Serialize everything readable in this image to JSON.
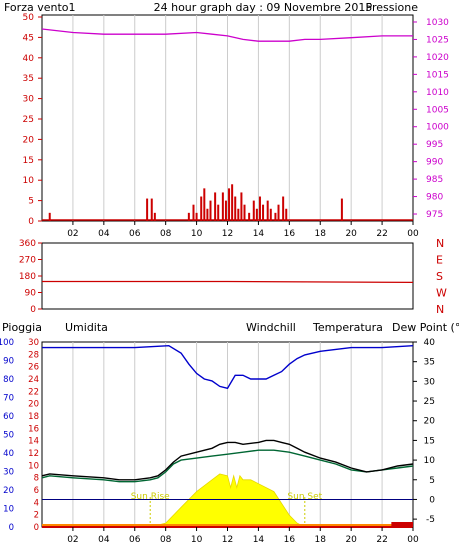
{
  "header": {
    "left": "Forza vento1",
    "title": "24 hour graph day : 09 Novembre 2015",
    "right": "Pressione"
  },
  "mid_header_labels": {
    "pioggia": "Pioggia",
    "umidita": "Umidita",
    "windchill": "Windchill",
    "temperatura": "Temperatura",
    "dewpoint": "Dew Point (°C"
  },
  "colors": {
    "wind": "#cc0000",
    "pressure": "#cc00cc",
    "humidity": "#0000cc",
    "temperature": "#000000",
    "dewpoint": "#006633",
    "windchill": "#ff8800",
    "solar": "#ffff00",
    "rain_axis": "#cc0000",
    "grid": "#cccccc",
    "navy": "#000080",
    "sun_label": "#cccc00"
  },
  "chart_data": [
    {
      "type": "bar",
      "panel": "wind-pressure",
      "x_ticks": [
        "02",
        "04",
        "06",
        "08",
        "10",
        "12",
        "14",
        "16",
        "18",
        "20",
        "22",
        "00"
      ],
      "y_left_ticks": [
        0,
        5,
        10,
        15,
        20,
        25,
        30,
        35,
        40,
        45,
        50
      ],
      "y_right_ticks": [
        975,
        980,
        985,
        990,
        995,
        1000,
        1005,
        1010,
        1015,
        1020,
        1025,
        1030
      ],
      "ylim_left": [
        0,
        50
      ],
      "ylim_right": [
        973,
        1032
      ],
      "wind_bars": [
        {
          "t": 0.5,
          "v": 2
        },
        {
          "t": 6.8,
          "v": 5.5
        },
        {
          "t": 7.1,
          "v": 5.5
        },
        {
          "t": 7.3,
          "v": 2
        },
        {
          "t": 9.5,
          "v": 2
        },
        {
          "t": 9.8,
          "v": 4
        },
        {
          "t": 10.0,
          "v": 2
        },
        {
          "t": 10.3,
          "v": 6
        },
        {
          "t": 10.5,
          "v": 8
        },
        {
          "t": 10.7,
          "v": 3
        },
        {
          "t": 10.9,
          "v": 5
        },
        {
          "t": 11.2,
          "v": 7
        },
        {
          "t": 11.4,
          "v": 4
        },
        {
          "t": 11.7,
          "v": 7
        },
        {
          "t": 11.9,
          "v": 5
        },
        {
          "t": 12.1,
          "v": 8
        },
        {
          "t": 12.3,
          "v": 9
        },
        {
          "t": 12.5,
          "v": 6
        },
        {
          "t": 12.7,
          "v": 3
        },
        {
          "t": 12.9,
          "v": 7
        },
        {
          "t": 13.1,
          "v": 4
        },
        {
          "t": 13.4,
          "v": 2
        },
        {
          "t": 13.7,
          "v": 5
        },
        {
          "t": 13.9,
          "v": 3
        },
        {
          "t": 14.1,
          "v": 6
        },
        {
          "t": 14.3,
          "v": 4
        },
        {
          "t": 14.6,
          "v": 5
        },
        {
          "t": 14.8,
          "v": 3
        },
        {
          "t": 15.1,
          "v": 2
        },
        {
          "t": 15.3,
          "v": 4
        },
        {
          "t": 15.6,
          "v": 6
        },
        {
          "t": 15.8,
          "v": 3
        },
        {
          "t": 19.4,
          "v": 5.5
        }
      ],
      "pressure": [
        {
          "t": 0,
          "v": 1028
        },
        {
          "t": 2,
          "v": 1027
        },
        {
          "t": 4,
          "v": 1026.5
        },
        {
          "t": 6,
          "v": 1026.5
        },
        {
          "t": 8,
          "v": 1026.5
        },
        {
          "t": 10,
          "v": 1027
        },
        {
          "t": 11,
          "v": 1026.5
        },
        {
          "t": 12,
          "v": 1026
        },
        {
          "t": 13,
          "v": 1025
        },
        {
          "t": 14,
          "v": 1024.5
        },
        {
          "t": 15,
          "v": 1024.5
        },
        {
          "t": 16,
          "v": 1024.5
        },
        {
          "t": 17,
          "v": 1025
        },
        {
          "t": 18,
          "v": 1025
        },
        {
          "t": 20,
          "v": 1025.5
        },
        {
          "t": 22,
          "v": 1026
        },
        {
          "t": 24,
          "v": 1026
        }
      ]
    },
    {
      "type": "line",
      "panel": "wind-direction",
      "y_ticks": [
        0,
        90,
        180,
        270,
        360
      ],
      "y_right_labels": [
        "N",
        "W",
        "S",
        "E",
        "N"
      ],
      "ylim": [
        0,
        360
      ],
      "direction": [
        {
          "t": 0,
          "v": 150
        },
        {
          "t": 12,
          "v": 150
        },
        {
          "t": 24,
          "v": 145
        }
      ]
    },
    {
      "type": "line",
      "panel": "rain-humidity-temperature",
      "x_ticks": [
        "02",
        "04",
        "06",
        "08",
        "10",
        "12",
        "14",
        "16",
        "18",
        "20",
        "22",
        "00"
      ],
      "humidity_ticks": [
        0,
        10,
        20,
        30,
        40,
        50,
        60,
        70,
        80,
        90,
        100
      ],
      "rain_ticks": [
        0,
        2,
        4,
        6,
        8,
        10,
        12,
        14,
        16,
        18,
        20,
        22,
        24,
        26,
        28,
        30
      ],
      "temp_ticks": [
        -5,
        0,
        5,
        10,
        15,
        20,
        25,
        30,
        35,
        40
      ],
      "ylim_temp": [
        -7,
        40
      ],
      "annotations": [
        "Sun Rise",
        "Sun Set"
      ],
      "humidity": [
        {
          "t": 0,
          "v": 97
        },
        {
          "t": 3,
          "v": 97
        },
        {
          "t": 6,
          "v": 97
        },
        {
          "t": 8.2,
          "v": 98
        },
        {
          "t": 9,
          "v": 94
        },
        {
          "t": 9.5,
          "v": 88
        },
        {
          "t": 10,
          "v": 83
        },
        {
          "t": 10.5,
          "v": 80
        },
        {
          "t": 11,
          "v": 79
        },
        {
          "t": 11.5,
          "v": 76
        },
        {
          "t": 12,
          "v": 75
        },
        {
          "t": 12.5,
          "v": 82
        },
        {
          "t": 13,
          "v": 82
        },
        {
          "t": 13.5,
          "v": 80
        },
        {
          "t": 14,
          "v": 80
        },
        {
          "t": 14.5,
          "v": 80
        },
        {
          "t": 15,
          "v": 82
        },
        {
          "t": 15.5,
          "v": 84
        },
        {
          "t": 16,
          "v": 88
        },
        {
          "t": 16.5,
          "v": 91
        },
        {
          "t": 17,
          "v": 93
        },
        {
          "t": 18,
          "v": 95
        },
        {
          "t": 19,
          "v": 96
        },
        {
          "t": 20,
          "v": 97
        },
        {
          "t": 22,
          "v": 97
        },
        {
          "t": 24,
          "v": 98
        }
      ],
      "temperature": [
        {
          "t": 0,
          "v": 6.0
        },
        {
          "t": 0.5,
          "v": 6.5
        },
        {
          "t": 2,
          "v": 6.0
        },
        {
          "t": 4,
          "v": 5.5
        },
        {
          "t": 5,
          "v": 5.0
        },
        {
          "t": 6,
          "v": 5.0
        },
        {
          "t": 7,
          "v": 5.5
        },
        {
          "t": 7.5,
          "v": 6.0
        },
        {
          "t": 8,
          "v": 7.5
        },
        {
          "t": 8.5,
          "v": 9.5
        },
        {
          "t": 9,
          "v": 11.0
        },
        {
          "t": 10,
          "v": 12.0
        },
        {
          "t": 11,
          "v": 13.0
        },
        {
          "t": 11.5,
          "v": 14.0
        },
        {
          "t": 12,
          "v": 14.5
        },
        {
          "t": 12.5,
          "v": 14.5
        },
        {
          "t": 13,
          "v": 14.0
        },
        {
          "t": 14,
          "v": 14.5
        },
        {
          "t": 14.5,
          "v": 15.0
        },
        {
          "t": 15,
          "v": 15.0
        },
        {
          "t": 15.5,
          "v": 14.5
        },
        {
          "t": 16,
          "v": 14.0
        },
        {
          "t": 16.5,
          "v": 13.0
        },
        {
          "t": 17,
          "v": 12.0
        },
        {
          "t": 18,
          "v": 10.5
        },
        {
          "t": 19,
          "v": 9.5
        },
        {
          "t": 20,
          "v": 8.0
        },
        {
          "t": 21,
          "v": 7.0
        },
        {
          "t": 22,
          "v": 7.5
        },
        {
          "t": 23,
          "v": 8.5
        },
        {
          "t": 24,
          "v": 9.0
        }
      ],
      "dewpoint": [
        {
          "t": 0,
          "v": 5.5
        },
        {
          "t": 0.5,
          "v": 6.0
        },
        {
          "t": 2,
          "v": 5.5
        },
        {
          "t": 4,
          "v": 5.0
        },
        {
          "t": 5,
          "v": 4.5
        },
        {
          "t": 6,
          "v": 4.5
        },
        {
          "t": 7,
          "v": 5.0
        },
        {
          "t": 7.5,
          "v": 5.5
        },
        {
          "t": 8,
          "v": 7.0
        },
        {
          "t": 8.5,
          "v": 9.0
        },
        {
          "t": 9,
          "v": 10.0
        },
        {
          "t": 10,
          "v": 10.5
        },
        {
          "t": 11,
          "v": 11.0
        },
        {
          "t": 12,
          "v": 11.5
        },
        {
          "t": 13,
          "v": 12.0
        },
        {
          "t": 14,
          "v": 12.5
        },
        {
          "t": 15,
          "v": 12.5
        },
        {
          "t": 16,
          "v": 12.0
        },
        {
          "t": 17,
          "v": 11.0
        },
        {
          "t": 18,
          "v": 10.0
        },
        {
          "t": 19,
          "v": 9.0
        },
        {
          "t": 20,
          "v": 7.5
        },
        {
          "t": 21,
          "v": 7.0
        },
        {
          "t": 22,
          "v": 7.5
        },
        {
          "t": 23,
          "v": 8.0
        },
        {
          "t": 24,
          "v": 8.5
        }
      ],
      "solar": [
        {
          "t": 7.0,
          "v": -7
        },
        {
          "t": 8,
          "v": -6
        },
        {
          "t": 9,
          "v": -2
        },
        {
          "t": 10,
          "v": 2
        },
        {
          "t": 11,
          "v": 5
        },
        {
          "t": 11.5,
          "v": 6.5
        },
        {
          "t": 12,
          "v": 6
        },
        {
          "t": 12.2,
          "v": 3
        },
        {
          "t": 12.4,
          "v": 6
        },
        {
          "t": 12.6,
          "v": 3
        },
        {
          "t": 12.8,
          "v": 6
        },
        {
          "t": 13,
          "v": 5
        },
        {
          "t": 13.5,
          "v": 5
        },
        {
          "t": 14,
          "v": 4
        },
        {
          "t": 15,
          "v": 2
        },
        {
          "t": 16,
          "v": -4
        },
        {
          "t": 16.5,
          "v": -6
        },
        {
          "t": 17,
          "v": -7
        }
      ],
      "rain": [
        {
          "t": 0,
          "v": 0
        },
        {
          "t": 24,
          "v": 0
        }
      ],
      "windchill": [
        {
          "t": 0,
          "v": -6.5
        },
        {
          "t": 24,
          "v": -6.5
        }
      ]
    }
  ]
}
